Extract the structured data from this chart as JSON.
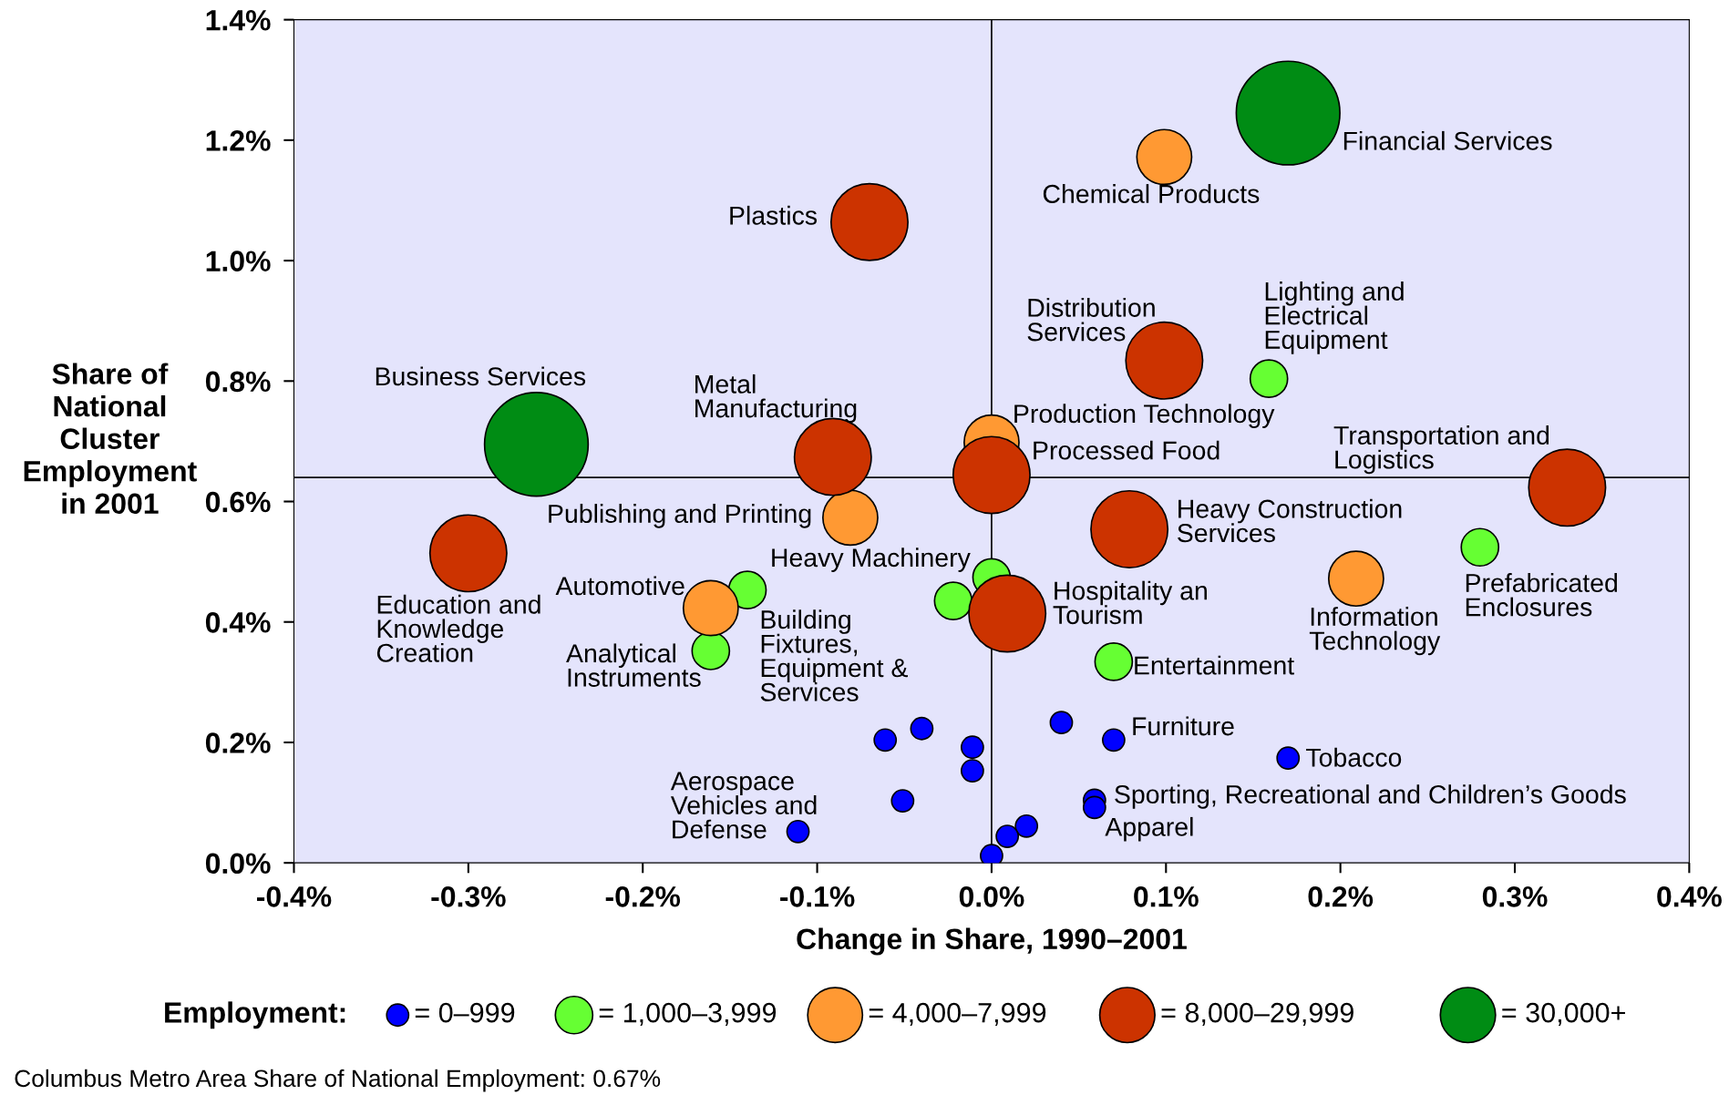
{
  "chart_data": {
    "type": "bubble",
    "xlabel": "Change in Share, 1990–2001",
    "ylabel": "Share of\nNational\nCluster\nEmployment\nin 2001",
    "legend_title": "Employment:",
    "legend": "bottom",
    "grid": false,
    "marker": "circle",
    "relative": false,
    "xlim": [
      -0.4,
      0.4
    ],
    "xticks": [
      {
        "value": -0.4,
        "label": "-0.4%"
      },
      {
        "value": -0.3,
        "label": "-0.3%"
      },
      {
        "value": -0.2,
        "label": "-0.2%"
      },
      {
        "value": -0.1,
        "label": "-0.1%"
      },
      {
        "value": 0,
        "label": "0.0%"
      },
      {
        "value": 0.1,
        "label": "0.1%"
      },
      {
        "value": 0.2,
        "label": "0.2%"
      },
      {
        "value": 0.3,
        "label": "0.3%"
      },
      {
        "value": 0.4,
        "label": "0.4%"
      }
    ],
    "ylim": [
      0,
      1.4
    ],
    "yticks": [
      {
        "value": 0,
        "label": "0.0%"
      },
      {
        "value": 0.2,
        "label": "0.2%"
      },
      {
        "value": 0.4,
        "label": "0.4%"
      },
      {
        "value": 0.6,
        "label": "0.6%"
      },
      {
        "value": 0.8,
        "label": "0.8%"
      },
      {
        "value": 1.0,
        "label": "1.0%"
      },
      {
        "value": 1.2,
        "label": "1.2%"
      },
      {
        "value": 1.4,
        "label": "1.4%"
      }
    ],
    "ref_lines": [
      {
        "axis": "x",
        "value": 0,
        "color": "#000000"
      },
      {
        "axis": "y",
        "value": 0.64,
        "color": "#000000"
      }
    ],
    "series": [
      {
        "name": "= 0–999",
        "color": "#0000ff",
        "x": [
          -0.061,
          -0.04,
          -0.011,
          -0.011,
          0.04,
          0.07,
          0.17,
          0.059,
          0.059,
          -0.051,
          -0.111,
          0.02,
          0.009,
          0
        ],
        "values": [
          0.204,
          0.223,
          0.192,
          0.153,
          0.233,
          0.204,
          0.174,
          0.104,
          0.092,
          0.103,
          0.052,
          0.061,
          0.044,
          0.012
        ],
        "sizes": [
          0.045,
          0.045,
          0.045,
          0.045,
          0.045,
          0.045,
          0.045,
          0.045,
          0.045,
          0.045,
          0.045,
          0.045,
          0.045,
          0.045
        ]
      },
      {
        "name": "= 1,000–3,999",
        "color": "#66ff33",
        "x": [
          0.159,
          0.28,
          0,
          -0.14,
          -0.022,
          -0.161,
          0.07
        ],
        "values": [
          0.804,
          0.524,
          0.474,
          0.453,
          0.435,
          0.352,
          0.334
        ],
        "sizes": [
          0.13,
          0.13,
          0.13,
          0.13,
          0.13,
          0.13,
          0.13
        ]
      },
      {
        "name": "= 4,000–7,999",
        "color": "#ff9933",
        "x": [
          0.099,
          0,
          -0.081,
          0.209,
          -0.161
        ],
        "values": [
          1.172,
          0.698,
          0.573,
          0.472,
          0.423
        ],
        "sizes": [
          0.28,
          0.28,
          0.28,
          0.28,
          0.28
        ]
      },
      {
        "name": "= 8,000–29,999",
        "color": "#cc3300",
        "x": [
          -0.07,
          0.099,
          -0.091,
          0,
          0.33,
          0.079,
          -0.3,
          0.009
        ],
        "values": [
          1.064,
          0.834,
          0.674,
          0.644,
          0.623,
          0.554,
          0.514,
          0.414
        ],
        "sizes": [
          0.55,
          0.55,
          0.55,
          0.55,
          0.55,
          0.55,
          0.55,
          0.55
        ]
      },
      {
        "name": "= 30,000+",
        "color": "#008c14",
        "x": [
          0.17,
          -0.261
        ],
        "values": [
          1.245,
          0.695
        ],
        "sizes": [
          1,
          1
        ]
      }
    ],
    "annotations": [
      {
        "text": "Financial Services",
        "x": 0.17,
        "y": 1.245
      },
      {
        "text": "Chemical Products",
        "x": 0.099,
        "y": 1.172
      },
      {
        "text": "Plastics",
        "x": -0.07,
        "y": 1.064
      },
      {
        "text": "Distribution\nServices",
        "x": 0.099,
        "y": 0.834
      },
      {
        "text": "Lighting and\nElectrical\nEquipment",
        "x": 0.159,
        "y": 0.804
      },
      {
        "text": "Business Services",
        "x": -0.261,
        "y": 0.695
      },
      {
        "text": "Metal\nManufacturing",
        "x": -0.091,
        "y": 0.674
      },
      {
        "text": "Production Technology",
        "x": 0,
        "y": 0.698
      },
      {
        "text": "Processed Food",
        "x": 0,
        "y": 0.644
      },
      {
        "text": "Transportation and\nLogistics",
        "x": 0.33,
        "y": 0.623
      },
      {
        "text": "Publishing and Printing",
        "x": -0.081,
        "y": 0.573
      },
      {
        "text": "Heavy Construction\nServices",
        "x": 0.079,
        "y": 0.554
      },
      {
        "text": "Education and\nKnowledge\nCreation",
        "x": -0.3,
        "y": 0.514
      },
      {
        "text": "Prefabricated\nEnclosures",
        "x": 0.28,
        "y": 0.524
      },
      {
        "text": "Information\nTechnology",
        "x": 0.209,
        "y": 0.472
      },
      {
        "text": "Heavy Machinery",
        "x": 0,
        "y": 0.474
      },
      {
        "text": "Automotive",
        "x": -0.161,
        "y": 0.423
      },
      {
        "text": "Building\nFixtures,\nEquipment &\nServices",
        "x": -0.14,
        "y": 0.453
      },
      {
        "text": "Hospitality an\nTourism",
        "x": 0.009,
        "y": 0.414
      },
      {
        "text": "Analytical\nInstruments",
        "x": -0.161,
        "y": 0.352
      },
      {
        "text": "Entertainment",
        "x": 0.07,
        "y": 0.334
      },
      {
        "text": "Furniture",
        "x": 0.07,
        "y": 0.204
      },
      {
        "text": "Tobacco",
        "x": 0.17,
        "y": 0.174
      },
      {
        "text": "Sporting, Recreational and Children’s Goods",
        "x": 0.059,
        "y": 0.104
      },
      {
        "text": "Apparel",
        "x": 0.059,
        "y": 0.092
      },
      {
        "text": "Aerospace\nVehicles and\nDefense",
        "x": -0.111,
        "y": 0.052
      },
      "Columbus Metro Area Share of National Employment: 0.67%"
    ]
  }
}
